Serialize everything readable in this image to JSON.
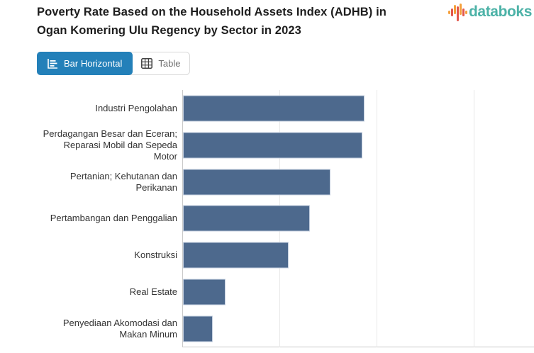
{
  "header": {
    "title": "Poverty Rate Based on the Household Assets Index (ADHB) in Ogan Komering Ulu Regency by Sector in 2023",
    "logo": {
      "text": "databoks"
    }
  },
  "tabs": [
    {
      "label": "Bar Horizontal",
      "icon": "bar-horizontal-icon",
      "active": true
    },
    {
      "label": "Table",
      "icon": "table-icon",
      "active": false
    }
  ],
  "colors": {
    "bar_fill": "#4d698d",
    "bar_border": "#c4cfdf",
    "active_tab": "#2380b9",
    "logo_teal": "#4cb2a7",
    "logo_orange": "#f5a03c",
    "logo_red": "#e2574c",
    "gridline": "#e8e8e8",
    "axis_line": "#c9c9c9"
  },
  "chart_data": {
    "type": "bar",
    "orientation": "horizontal",
    "title": "Poverty Rate Based on the Household Assets Index (ADHB) in Ogan Komering Ulu Regency by Sector in 2023",
    "categories": [
      "Industri Pengolahan",
      "Perdagangan Besar dan Eceran; Reparasi Mobil dan Sepeda Motor",
      "Pertanian; Kehutanan dan Perikanan",
      "Pertambangan dan Penggalian",
      "Konstruksi",
      "Real Estate",
      "Penyediaan Akomodasi dan Makan Minum"
    ],
    "values": [
      18.7,
      18.5,
      15.2,
      13.1,
      10.9,
      4.4,
      3.1
    ],
    "xlabel": "",
    "ylabel": "",
    "xlim": [
      0,
      36.2
    ],
    "gridline_values": [
      10,
      20,
      30
    ],
    "grid": "vertical",
    "legend": "none",
    "value_labels_shown": false,
    "axis_tick_labels_visible": false
  }
}
